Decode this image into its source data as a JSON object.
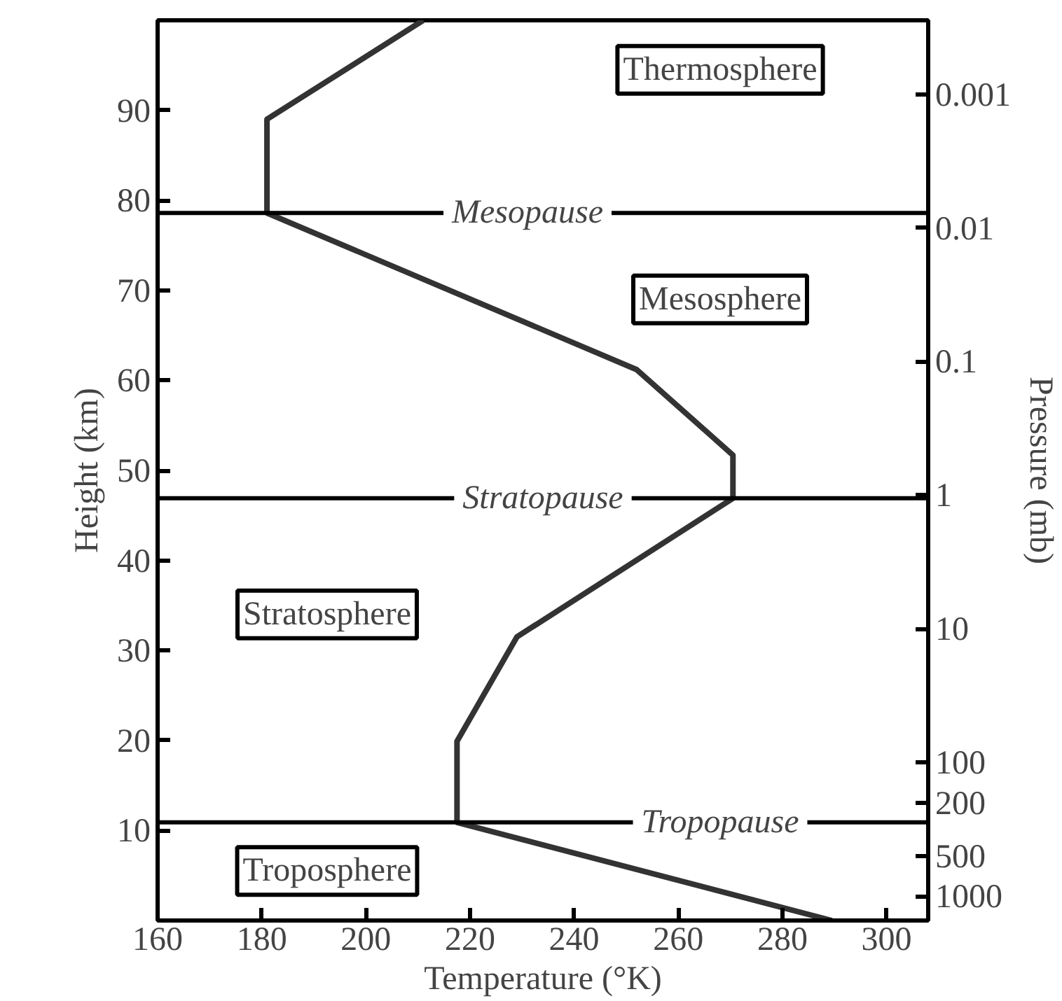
{
  "chart_data": {
    "type": "line",
    "xlabel": "Temperature (°K)",
    "ylabel": "Height (km)",
    "y2label": "Pressure (mb)",
    "series": [
      {
        "color": "#333333",
        "x": [
          211,
          181,
          181,
          252,
          270.5,
          270.5,
          229,
          217.5,
          217.5,
          289.5
        ],
        "values": [
          100,
          89,
          78.6,
          61.2,
          51.7,
          46.9,
          31.5,
          19.9,
          10.9,
          0
        ]
      }
    ],
    "xlim": [
      160,
      308
    ],
    "xticks": [
      160,
      180,
      200,
      220,
      240,
      260,
      280,
      300
    ],
    "ylim": [
      0,
      100
    ],
    "yticks": [
      10,
      20,
      30,
      40,
      50,
      60,
      70,
      80,
      90
    ],
    "log": "y2",
    "y2lim": [
      1520,
      0.00028
    ],
    "y2ticks": [
      0.001,
      0.01,
      0.1,
      1,
      10,
      100,
      200,
      500,
      1000
    ],
    "ref_lines": [
      {
        "axis": "y",
        "value": 78.6,
        "label": "Mesopause",
        "color": "#000000"
      },
      {
        "axis": "y",
        "value": 46.9,
        "label": "Stratopause",
        "color": "#000000"
      },
      {
        "axis": "y",
        "value": 10.9,
        "label": "Tropopause",
        "color": "#000000"
      }
    ],
    "annotations": [
      "Thermosphere",
      "Mesosphere",
      "Stratosphere",
      "Troposphere"
    ],
    "grid": false,
    "marker": "none",
    "line_style": "solid"
  }
}
